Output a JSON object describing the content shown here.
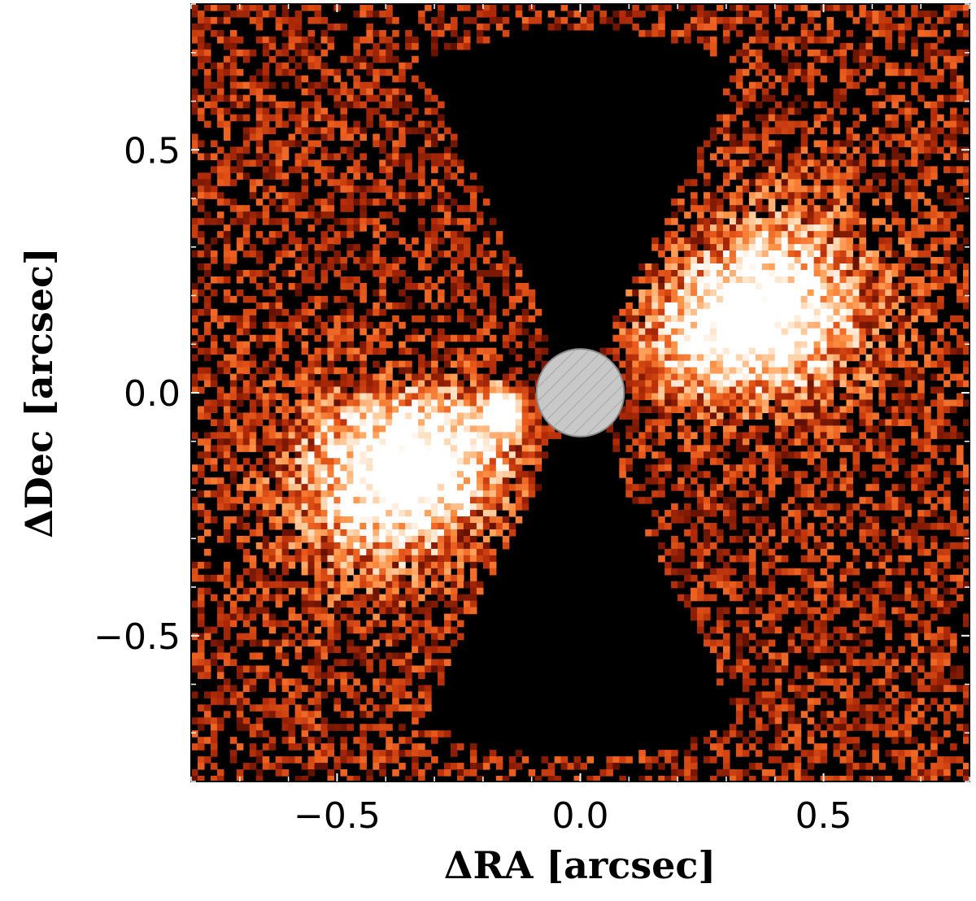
{
  "axes": {
    "xlabel": "ΔRA [arcsec]",
    "ylabel": "ΔDec [arcsec]",
    "xlim": [
      -0.8,
      0.8
    ],
    "ylim": [
      -0.8,
      0.8
    ],
    "xticks": [
      {
        "value": -0.5,
        "label": "−0.5"
      },
      {
        "value": 0.0,
        "label": "0.0"
      },
      {
        "value": 0.5,
        "label": "0.5"
      }
    ],
    "yticks": [
      {
        "value": 0.5,
        "label": "0.5"
      },
      {
        "value": 0.0,
        "label": "0.0"
      },
      {
        "value": -0.5,
        "label": "−0.5"
      }
    ]
  },
  "image": {
    "colormap": [
      "#000000",
      "#5a0e00",
      "#b02a08",
      "#e8581a",
      "#ff9448",
      "#ffd2a8",
      "#ffffff"
    ],
    "mask": {
      "x": 0.0,
      "y": 0.0,
      "radius": 0.09,
      "color": "#c8c8c8",
      "edge_color": "#8a8a8a"
    },
    "companion": {
      "x": -0.16,
      "y": -0.04
    }
  }
}
